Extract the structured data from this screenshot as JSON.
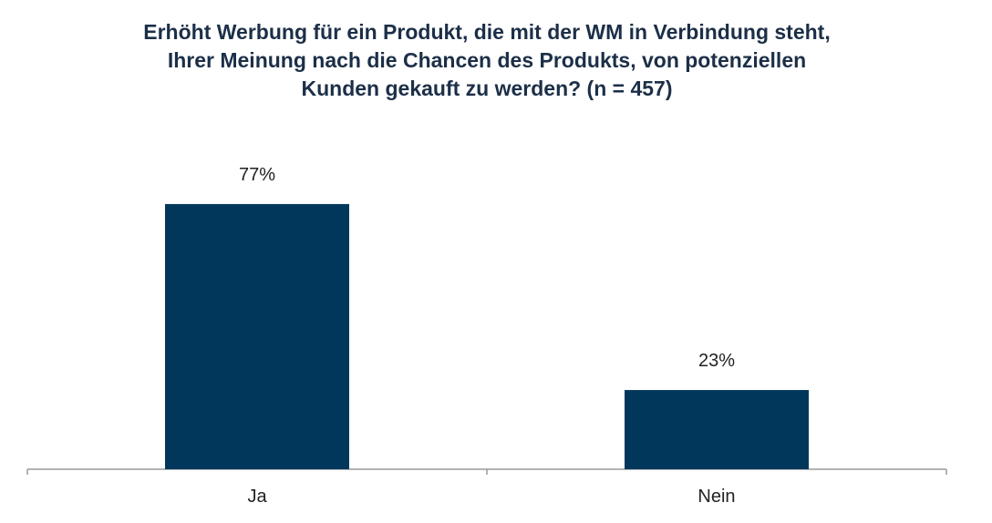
{
  "chart_data": {
    "type": "bar",
    "title_lines": [
      "Erhöht Werbung für ein Produkt, die mit der WM in Verbindung steht,",
      "Ihrer Meinung nach die Chancen des Produkts, von potenziellen",
      "Kunden gekauft zu werden? (n = 457)"
    ],
    "categories": [
      "Ja",
      "Nein"
    ],
    "values": [
      77,
      23
    ],
    "data_labels": [
      "77%",
      "23%"
    ],
    "unit": "%",
    "ylim": [
      0,
      100
    ],
    "grid": false,
    "legend": "none",
    "bar_color": "#00375b",
    "axis_color": "#9a9a9a"
  }
}
